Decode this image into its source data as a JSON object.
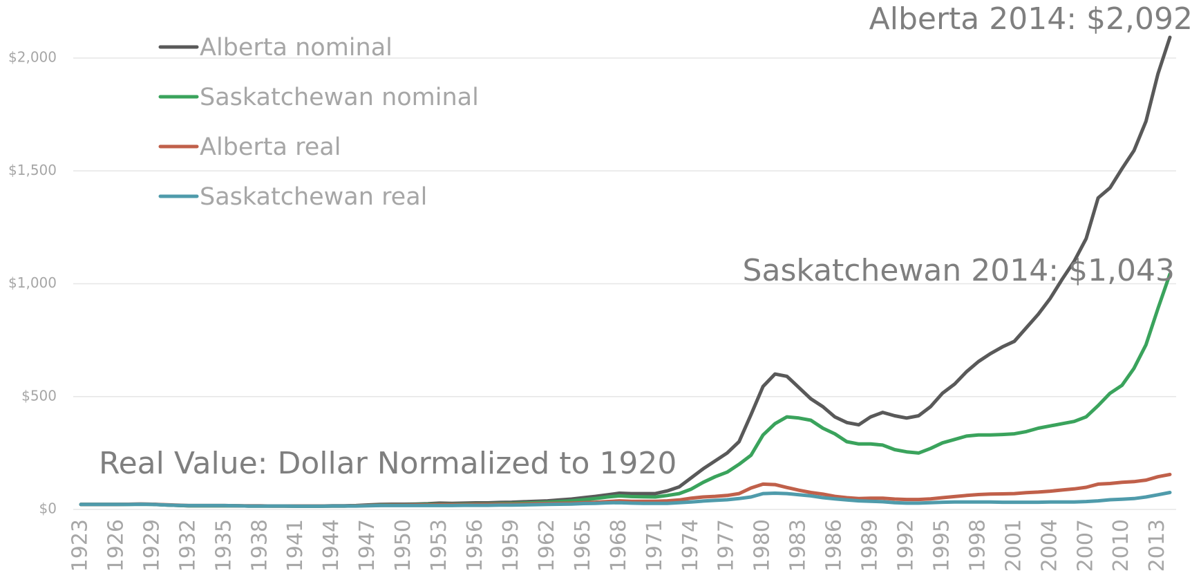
{
  "chart_data": {
    "type": "line",
    "x": [
      1923,
      1924,
      1925,
      1926,
      1927,
      1928,
      1929,
      1930,
      1931,
      1932,
      1933,
      1934,
      1935,
      1936,
      1937,
      1938,
      1939,
      1940,
      1941,
      1942,
      1943,
      1944,
      1945,
      1946,
      1947,
      1948,
      1949,
      1950,
      1951,
      1952,
      1953,
      1954,
      1955,
      1956,
      1957,
      1958,
      1959,
      1960,
      1961,
      1962,
      1963,
      1964,
      1965,
      1966,
      1967,
      1968,
      1969,
      1970,
      1971,
      1972,
      1973,
      1974,
      1975,
      1976,
      1977,
      1978,
      1979,
      1980,
      1981,
      1982,
      1983,
      1984,
      1985,
      1986,
      1987,
      1988,
      1989,
      1990,
      1991,
      1992,
      1993,
      1994,
      1995,
      1996,
      1997,
      1998,
      1999,
      2000,
      2001,
      2002,
      2003,
      2004,
      2005,
      2006,
      2007,
      2008,
      2009,
      2010,
      2011,
      2012,
      2013,
      2014
    ],
    "xlim": [
      1923,
      2014
    ],
    "xticks": [
      1923,
      1926,
      1929,
      1932,
      1935,
      1938,
      1941,
      1944,
      1947,
      1950,
      1953,
      1956,
      1959,
      1962,
      1965,
      1968,
      1971,
      1974,
      1977,
      1980,
      1983,
      1986,
      1989,
      1992,
      1995,
      1998,
      2001,
      2004,
      2007,
      2010,
      2013
    ],
    "ylim": [
      0,
      2200
    ],
    "yticks": [
      {
        "value": 0,
        "label": "$0"
      },
      {
        "value": 500,
        "label": "$500"
      },
      {
        "value": 1000,
        "label": "$1,000"
      },
      {
        "value": 1500,
        "label": "$1,500"
      },
      {
        "value": 2000,
        "label": "$2,000"
      }
    ],
    "grid": true,
    "legend": "top-left",
    "series": [
      {
        "name": "Alberta nominal",
        "color": "#595959",
        "values": [
          22,
          22,
          22,
          22,
          23,
          24,
          23,
          20,
          18,
          16,
          16,
          16,
          16,
          16,
          15,
          15,
          15,
          15,
          15,
          15,
          15,
          16,
          16,
          17,
          20,
          22,
          23,
          23,
          24,
          25,
          28,
          27,
          28,
          29,
          29,
          31,
          32,
          34,
          36,
          38,
          42,
          46,
          52,
          58,
          65,
          72,
          70,
          70,
          70,
          82,
          100,
          140,
          180,
          215,
          250,
          300,
          420,
          545,
          600,
          590,
          540,
          490,
          455,
          410,
          385,
          375,
          410,
          430,
          415,
          405,
          415,
          455,
          515,
          555,
          610,
          655,
          690,
          720,
          745,
          805,
          865,
          935,
          1020,
          1100,
          1200,
          1380,
          1425,
          1510,
          1590,
          1720,
          1930,
          2092
        ]
      },
      {
        "name": "Saskatchewan nominal",
        "color": "#3aa35c",
        "values": [
          22,
          22,
          22,
          22,
          22,
          23,
          22,
          20,
          18,
          16,
          16,
          16,
          16,
          16,
          15,
          15,
          15,
          15,
          14,
          14,
          14,
          15,
          15,
          16,
          17,
          19,
          20,
          20,
          21,
          22,
          22,
          22,
          23,
          24,
          24,
          25,
          26,
          28,
          30,
          32,
          35,
          38,
          43,
          48,
          55,
          60,
          57,
          56,
          55,
          62,
          70,
          90,
          120,
          145,
          165,
          200,
          240,
          330,
          380,
          410,
          405,
          395,
          360,
          335,
          300,
          290,
          290,
          285,
          265,
          255,
          250,
          270,
          295,
          310,
          325,
          330,
          330,
          332,
          335,
          345,
          360,
          370,
          380,
          390,
          410,
          460,
          515,
          550,
          625,
          730,
          890,
          1043
        ]
      },
      {
        "name": "Alberta real",
        "color": "#c0604a",
        "values": [
          22,
          22,
          22,
          22,
          23,
          24,
          23,
          21,
          19,
          17,
          17,
          17,
          17,
          16,
          16,
          16,
          15,
          15,
          15,
          15,
          15,
          15,
          15,
          16,
          17,
          18,
          19,
          19,
          20,
          20,
          21,
          21,
          21,
          22,
          22,
          23,
          23,
          24,
          25,
          26,
          27,
          28,
          30,
          32,
          35,
          38,
          36,
          36,
          36,
          38,
          42,
          50,
          55,
          58,
          62,
          70,
          95,
          112,
          110,
          97,
          85,
          75,
          68,
          58,
          52,
          48,
          50,
          50,
          46,
          44,
          44,
          47,
          52,
          57,
          62,
          66,
          68,
          69,
          70,
          74,
          77,
          81,
          86,
          91,
          98,
          112,
          115,
          120,
          123,
          130,
          145,
          155
        ]
      },
      {
        "name": "Saskatchewan real",
        "color": "#4f9bab",
        "values": [
          22,
          22,
          22,
          22,
          22,
          23,
          22,
          20,
          18,
          17,
          17,
          17,
          17,
          16,
          15,
          15,
          15,
          15,
          14,
          14,
          14,
          15,
          15,
          15,
          16,
          17,
          17,
          17,
          17,
          17,
          17,
          17,
          18,
          18,
          18,
          19,
          19,
          20,
          21,
          22,
          23,
          24,
          26,
          27,
          29,
          30,
          28,
          27,
          27,
          27,
          30,
          33,
          37,
          40,
          43,
          48,
          55,
          70,
          72,
          70,
          65,
          60,
          52,
          47,
          42,
          38,
          36,
          34,
          30,
          28,
          28,
          30,
          32,
          33,
          33,
          33,
          33,
          32,
          32,
          32,
          32,
          33,
          33,
          33,
          35,
          38,
          43,
          45,
          48,
          55,
          65,
          75
        ]
      }
    ],
    "annotations": [
      {
        "text": "Alberta 2014:  $2,092"
      },
      {
        "text": "Saskatchewan 2014:  $1,043"
      },
      {
        "text": "Real Value: Dollar Normalized to 1920"
      }
    ]
  }
}
